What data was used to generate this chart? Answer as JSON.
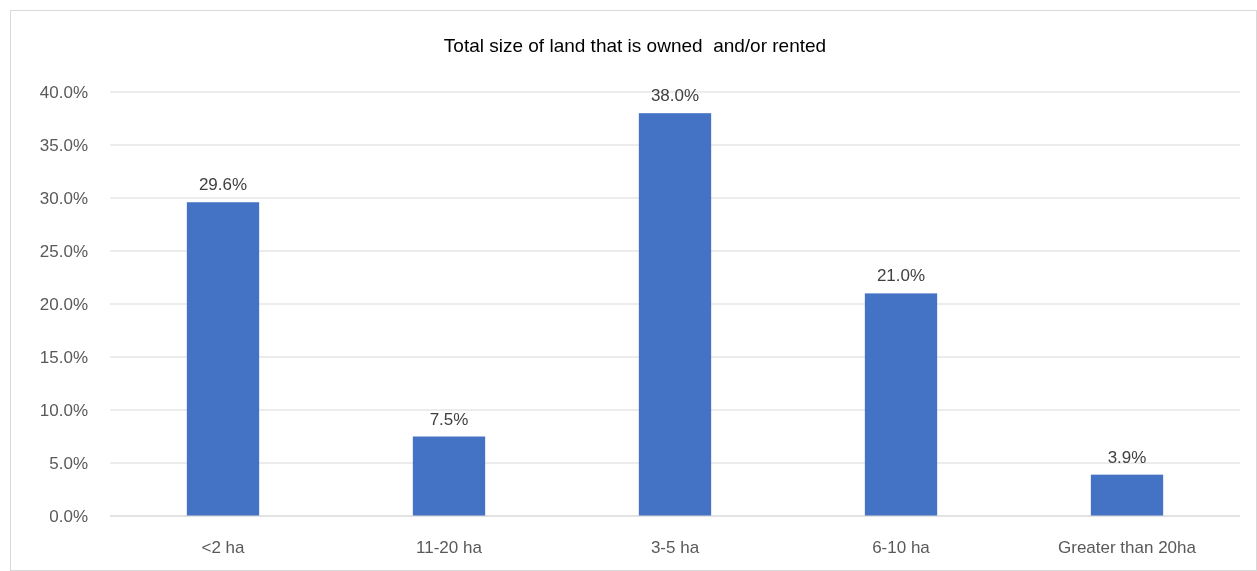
{
  "chart_data": {
    "type": "bar",
    "title": "Total size of land that is owned  and/or rented",
    "categories": [
      "<2 ha",
      "11-20 ha",
      "3-5 ha",
      "6-10 ha",
      "Greater than 20ha"
    ],
    "values": [
      29.6,
      7.5,
      38.0,
      21.0,
      3.9
    ],
    "value_labels": [
      "29.6%",
      "7.5%",
      "38.0%",
      "21.0%",
      "3.9%"
    ],
    "color": "#4472c4",
    "ylim": [
      0,
      40
    ],
    "yticks": [
      {
        "value": 0,
        "label": "0.0%"
      },
      {
        "value": 5,
        "label": "5.0%"
      },
      {
        "value": 10,
        "label": "10.0%"
      },
      {
        "value": 15,
        "label": "15.0%"
      },
      {
        "value": 20,
        "label": "20.0%"
      },
      {
        "value": 25,
        "label": "25.0%"
      },
      {
        "value": 30,
        "label": "30.0%"
      },
      {
        "value": 35,
        "label": "35.0%"
      },
      {
        "value": 40,
        "label": "40.0%"
      }
    ],
    "grid": "y"
  }
}
